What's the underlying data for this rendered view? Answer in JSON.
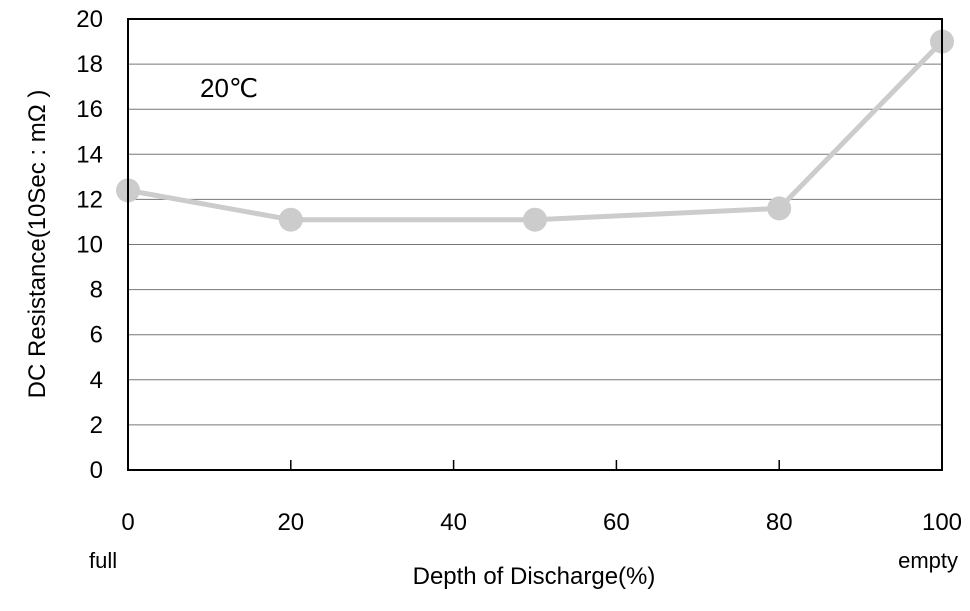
{
  "chart_data": {
    "type": "line",
    "title": "",
    "xlabel": "Depth of Discharge(%)",
    "ylabel": "DC Resistance(10Sec : mΩ )",
    "annotation": "20℃",
    "x_left_note": "full",
    "x_right_note": "empty",
    "xlim": [
      0,
      100
    ],
    "ylim": [
      0,
      20
    ],
    "x_ticks": [
      0,
      20,
      40,
      60,
      80,
      100
    ],
    "y_ticks": [
      0,
      2,
      4,
      6,
      8,
      10,
      12,
      14,
      16,
      18,
      20
    ],
    "grid": "horizontal",
    "series": [
      {
        "color": "#cccccc",
        "x": [
          0,
          20,
          50,
          80,
          100
        ],
        "y": [
          12.4,
          11.1,
          11.1,
          11.6,
          19.0
        ]
      }
    ]
  }
}
